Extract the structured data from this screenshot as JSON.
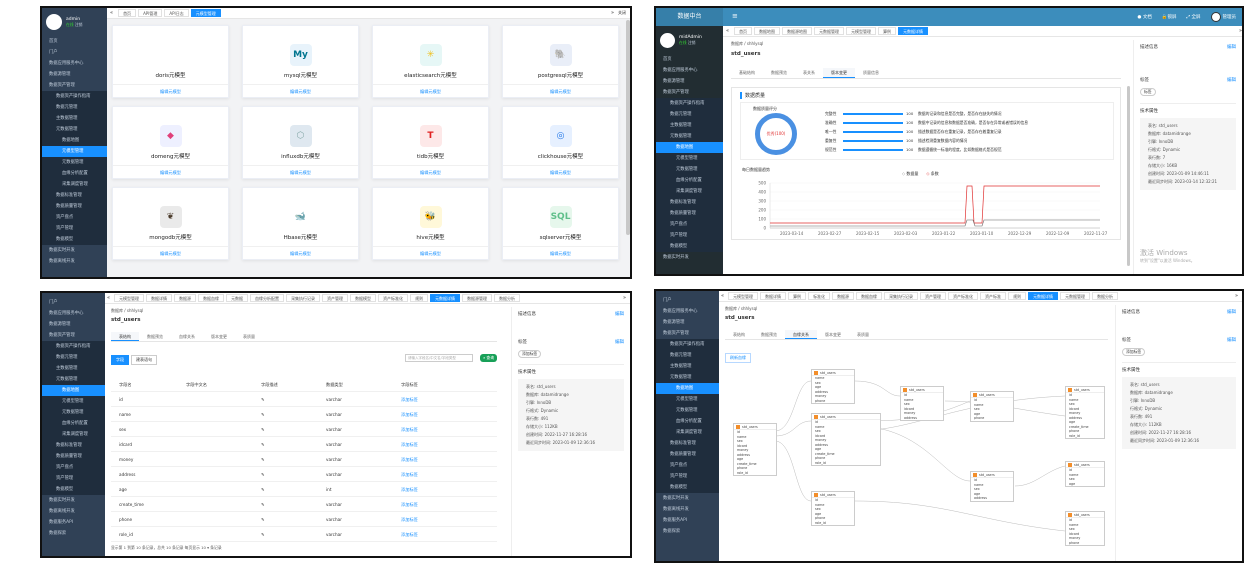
{
  "p1": {
    "user": {
      "name": "admin",
      "status": "在线",
      "logout": "注销"
    },
    "menu": [
      {
        "label": "首页",
        "cls": ""
      },
      {
        "label": "门户",
        "cls": ""
      },
      {
        "label": "数据应用服务中心",
        "cls": ""
      },
      {
        "label": "数据源管理",
        "cls": ""
      },
      {
        "label": "数据资产管理",
        "cls": ""
      },
      {
        "label": "数据资产操作指南",
        "cls": "sub"
      },
      {
        "label": "数据元管理",
        "cls": "sub"
      },
      {
        "label": "主数据管理",
        "cls": "sub"
      },
      {
        "label": "元数据管理",
        "cls": "sub"
      },
      {
        "label": "数据地图",
        "cls": "sub2"
      },
      {
        "label": "元模型管理",
        "cls": "sub2 act"
      },
      {
        "label": "元数据管理",
        "cls": "sub2"
      },
      {
        "label": "血缘分析配置",
        "cls": "sub2"
      },
      {
        "label": "采集调度管理",
        "cls": "sub2"
      },
      {
        "label": "数据标准管理",
        "cls": "sub"
      },
      {
        "label": "数据质量管理",
        "cls": "sub"
      },
      {
        "label": "资产盘点",
        "cls": "sub"
      },
      {
        "label": "资产管理",
        "cls": "sub"
      },
      {
        "label": "数据模型",
        "cls": "sub"
      },
      {
        "label": "数据实时开发",
        "cls": ""
      },
      {
        "label": "数据离线开发",
        "cls": ""
      }
    ],
    "tabs": [
      "首页",
      "API管理",
      "API日志",
      "元模型管理"
    ],
    "tab_close": "关闭",
    "edit": "编辑元模型",
    "cards": [
      {
        "name": "doris元模型",
        "icon": "",
        "bg": "#fff",
        "fg": "#333"
      },
      {
        "name": "mysql元模型",
        "icon": "My",
        "bg": "#e8f3fb",
        "fg": "#00758f"
      },
      {
        "name": "elasticsearch元模型",
        "icon": "✳",
        "bg": "#e6f7f6",
        "fg": "#f0bf1a"
      },
      {
        "name": "postgresql元模型",
        "icon": "🐘",
        "bg": "#e9eef8",
        "fg": "#336791"
      },
      {
        "name": "domeng元模型",
        "icon": "◆",
        "bg": "#eef0ff",
        "fg": "#e0407a"
      },
      {
        "name": "influxdb元模型",
        "icon": "⬡",
        "bg": "#dfe8f0",
        "fg": "#8aa"
      },
      {
        "name": "tidb元模型",
        "icon": "T",
        "bg": "#fde8e8",
        "fg": "#e02020"
      },
      {
        "name": "clickhouse元模型",
        "icon": "◎",
        "bg": "#e6f0ff",
        "fg": "#1a73e8"
      },
      {
        "name": "mongodb元模型",
        "icon": "❦",
        "bg": "#eaeaea",
        "fg": "#4a3a2a"
      },
      {
        "name": "Hbase元模型",
        "icon": "🐋",
        "bg": "#fff",
        "fg": "#000"
      },
      {
        "name": "hive元模型",
        "icon": "🐝",
        "bg": "#fff8d9",
        "fg": "#c9a000"
      },
      {
        "name": "sqlserver元模型",
        "icon": "SQL",
        "bg": "#e6f7ec",
        "fg": "#5fbf8a"
      }
    ]
  },
  "p2": {
    "brand": "数据中台",
    "header": [
      {
        "label": "文档"
      },
      {
        "label": "锁屏"
      },
      {
        "label": "全屏"
      },
      {
        "label": "管理员"
      }
    ],
    "user": {
      "name": "midAdmin",
      "status": "在线",
      "logout": "注销"
    },
    "menu": [
      {
        "label": "首页",
        "cls": ""
      },
      {
        "label": "数据应用服务中心",
        "cls": ""
      },
      {
        "label": "数据源管理",
        "cls": ""
      },
      {
        "label": "数据资产管理",
        "cls": ""
      },
      {
        "label": "数据资产操作指南",
        "cls": "sub"
      },
      {
        "label": "数据元管理",
        "cls": "sub"
      },
      {
        "label": "主数据管理",
        "cls": "sub"
      },
      {
        "label": "元数据管理",
        "cls": "sub"
      },
      {
        "label": "数据地图",
        "cls": "sub2 act"
      },
      {
        "label": "元模型管理",
        "cls": "sub2"
      },
      {
        "label": "元数据管理",
        "cls": "sub2"
      },
      {
        "label": "血缘分析配置",
        "cls": "sub2"
      },
      {
        "label": "采集调度管理",
        "cls": "sub2"
      },
      {
        "label": "数据标准管理",
        "cls": "sub"
      },
      {
        "label": "数据质量管理",
        "cls": "sub"
      },
      {
        "label": "资产盘点",
        "cls": "sub"
      },
      {
        "label": "资产管理",
        "cls": "sub"
      },
      {
        "label": "数据模型",
        "cls": "sub"
      },
      {
        "label": "数据实时开发",
        "cls": ""
      }
    ],
    "tabs": [
      "首页",
      "数据地图",
      "数据源地图",
      "元数据管理",
      "元模型管理",
      "算例",
      "元数据详情"
    ],
    "crumb": "数据库 / shhlysql",
    "title": "std_users",
    "subtabs": [
      "基础结构",
      "数据预览",
      "表关系",
      "版本变更",
      "质量信息"
    ],
    "section": "数据质量",
    "score_label": "数据质量评分",
    "score": "优秀(100)",
    "metrics": [
      {
        "name": "完整性",
        "val": "100",
        "desc": "数据的记录和信息是否完整，是否存在缺失的情况"
      },
      {
        "name": "准确性",
        "val": "100",
        "desc": "数据中记录的信息和数据是否准确，是否存在异常或者错误的信息"
      },
      {
        "name": "唯一性",
        "val": "100",
        "desc": "描述数据是否存在重复记录，是否存在着重复记录"
      },
      {
        "name": "重复性",
        "val": "100",
        "desc": "描述检测重复数据内容的情况"
      },
      {
        "name": "规范性",
        "val": "100",
        "desc": "数据遵循统一标准的程度，比如数据格式是否规范"
      }
    ],
    "trend_title": "每日数据量趋势",
    "legend": [
      "数据量",
      "条数"
    ],
    "y_ticks": [
      "500",
      "400",
      "300",
      "200",
      "100",
      "0"
    ],
    "x_ticks": [
      "2023-03-14",
      "2023-02-27",
      "2023-02-15",
      "2023-02-03",
      "2023-01-22",
      "2023-01-10",
      "2022-12-29",
      "2022-12-09",
      "2022-11-27"
    ],
    "right": {
      "desc_title": "描述信息",
      "edit": "编辑",
      "tag_title": "标签",
      "tag_edit": "编辑",
      "tag_btn": "标签",
      "tech_title": "技术属性",
      "attrs": [
        "表名: std_users",
        "数据库: datamidrange",
        "引擎: InnoDB",
        "行格式: Dynamic",
        "表行数: 7",
        "存储大小: 16KB",
        "创建时间: 2023-01-09 14:46:11",
        "最近同步时间: 2023-03-14 12:32:21"
      ]
    },
    "watermark": "激活 Windows",
    "watermark2": "转到\"设置\"以激活 Windows。"
  },
  "p3": {
    "menu": [
      {
        "label": "门户",
        "cls": ""
      },
      {
        "label": "数据应用服务中心",
        "cls": ""
      },
      {
        "label": "数据源管理",
        "cls": ""
      },
      {
        "label": "数据资产管理",
        "cls": ""
      },
      {
        "label": "数据资产操作指南",
        "cls": "sub"
      },
      {
        "label": "数据元管理",
        "cls": "sub"
      },
      {
        "label": "主数据管理",
        "cls": "sub"
      },
      {
        "label": "元数据管理",
        "cls": "sub"
      },
      {
        "label": "数据地图",
        "cls": "sub2 act"
      },
      {
        "label": "元模型管理",
        "cls": "sub2"
      },
      {
        "label": "元数据管理",
        "cls": "sub2"
      },
      {
        "label": "血缘分析配置",
        "cls": "sub2"
      },
      {
        "label": "采集调度管理",
        "cls": "sub2"
      },
      {
        "label": "数据标准管理",
        "cls": "sub"
      },
      {
        "label": "数据质量管理",
        "cls": "sub"
      },
      {
        "label": "资产盘点",
        "cls": "sub"
      },
      {
        "label": "资产管理",
        "cls": "sub"
      },
      {
        "label": "数据模型",
        "cls": "sub"
      },
      {
        "label": "数据实时开发",
        "cls": ""
      },
      {
        "label": "数据离线开发",
        "cls": ""
      },
      {
        "label": "数据服务API",
        "cls": ""
      },
      {
        "label": "数据探索",
        "cls": ""
      }
    ],
    "tabs": [
      "元模型管理",
      "数据详情",
      "数据源",
      "数据血缘",
      "元数据",
      "血缘分析配置",
      "采集执行记录",
      "资产管理",
      "数据模型",
      "资产标准化",
      "规则",
      "元数据详情",
      "数据源管理",
      "数据分析"
    ],
    "crumb": "数据库 / shhlysql",
    "title": "std_users",
    "subtabs": [
      "表结构",
      "数据预览",
      "血缘关系",
      "版本变更",
      "表质量"
    ],
    "buttons": [
      "字段",
      "建表语句"
    ],
    "search_placeholder": "请输入字段名/中文名/字段类型",
    "search_btn": "查询",
    "columns": [
      "字段名",
      "字段中文名",
      "字段描述",
      "数据类型",
      "字段标签"
    ],
    "rows": [
      {
        "f": "id",
        "t": "varchar"
      },
      {
        "f": "name",
        "t": "varchar"
      },
      {
        "f": "sex",
        "t": "varchar"
      },
      {
        "f": "idcard",
        "t": "varchar"
      },
      {
        "f": "money",
        "t": "varchar"
      },
      {
        "f": "address",
        "t": "varchar"
      },
      {
        "f": "age",
        "t": "int"
      },
      {
        "f": "create_time",
        "t": "varchar"
      },
      {
        "f": "phone",
        "t": "varchar"
      },
      {
        "f": "role_id",
        "t": "varchar"
      }
    ],
    "add_tag": "添加标签",
    "pager": "显示第 1 到第 10 条记录，总共 10 条记录 每页显示 10 ▾ 条记录",
    "right": {
      "desc_title": "描述信息",
      "edit": "编辑",
      "tag_title": "标签",
      "tag_edit": "编辑",
      "tag_btn": "添加标签",
      "tech_title": "技术属性",
      "attrs": [
        "表名: std_users",
        "数据库: datamidrange",
        "引擎: InnoDB",
        "行格式: Dynamic",
        "表行数: 491",
        "存储大小: 112KB",
        "创建时间: 2022-11-27 16:28:16",
        "最近同步时间: 2023-01-09 12:36:16"
      ]
    }
  },
  "p4": {
    "menu": [
      {
        "label": "门户",
        "cls": ""
      },
      {
        "label": "数据应用服务中心",
        "cls": ""
      },
      {
        "label": "数据源管理",
        "cls": ""
      },
      {
        "label": "数据资产管理",
        "cls": ""
      },
      {
        "label": "数据资产操作指南",
        "cls": "sub"
      },
      {
        "label": "数据元管理",
        "cls": "sub"
      },
      {
        "label": "主数据管理",
        "cls": "sub"
      },
      {
        "label": "元数据管理",
        "cls": "sub"
      },
      {
        "label": "数据地图",
        "cls": "sub2 act"
      },
      {
        "label": "元模型管理",
        "cls": "sub2"
      },
      {
        "label": "元数据管理",
        "cls": "sub2"
      },
      {
        "label": "血缘分析配置",
        "cls": "sub2"
      },
      {
        "label": "采集调度管理",
        "cls": "sub2"
      },
      {
        "label": "数据标准管理",
        "cls": "sub"
      },
      {
        "label": "数据质量管理",
        "cls": "sub"
      },
      {
        "label": "资产盘点",
        "cls": "sub"
      },
      {
        "label": "资产管理",
        "cls": "sub"
      },
      {
        "label": "数据模型",
        "cls": "sub"
      },
      {
        "label": "数据实时开发",
        "cls": ""
      },
      {
        "label": "数据离线开发",
        "cls": ""
      },
      {
        "label": "数据服务API",
        "cls": ""
      },
      {
        "label": "数据探索",
        "cls": ""
      }
    ],
    "tabs": [
      "元模型管理",
      "数据详情",
      "算例",
      "标准化",
      "数据源",
      "数据血缘",
      "采集执行记录",
      "资产管理",
      "资产标准化",
      "资产标准",
      "规则",
      "元数据详情",
      "元数据管理",
      "数据分析"
    ],
    "crumb": "数据库 / shhlysql",
    "title": "std_users",
    "subtabs": [
      "表结构",
      "数据预览",
      "血缘关系",
      "版本变更",
      "表质量"
    ],
    "refresh_btn": "刷新血缘",
    "right": {
      "desc_title": "描述信息",
      "edit": "编辑",
      "tag_title": "标签",
      "tag_edit": "编辑",
      "tag_btn": "添加标签",
      "tech_title": "技术属性",
      "attrs": [
        "表名: std_users",
        "数据库: datamidrange",
        "引擎: InnoDB",
        "行格式: Dynamic",
        "表行数: 491",
        "存储大小: 112KB",
        "创建时间: 2022-11-27 16:28:16",
        "最近同步时间: 2023-01-09 12:36:16"
      ]
    }
  }
}
